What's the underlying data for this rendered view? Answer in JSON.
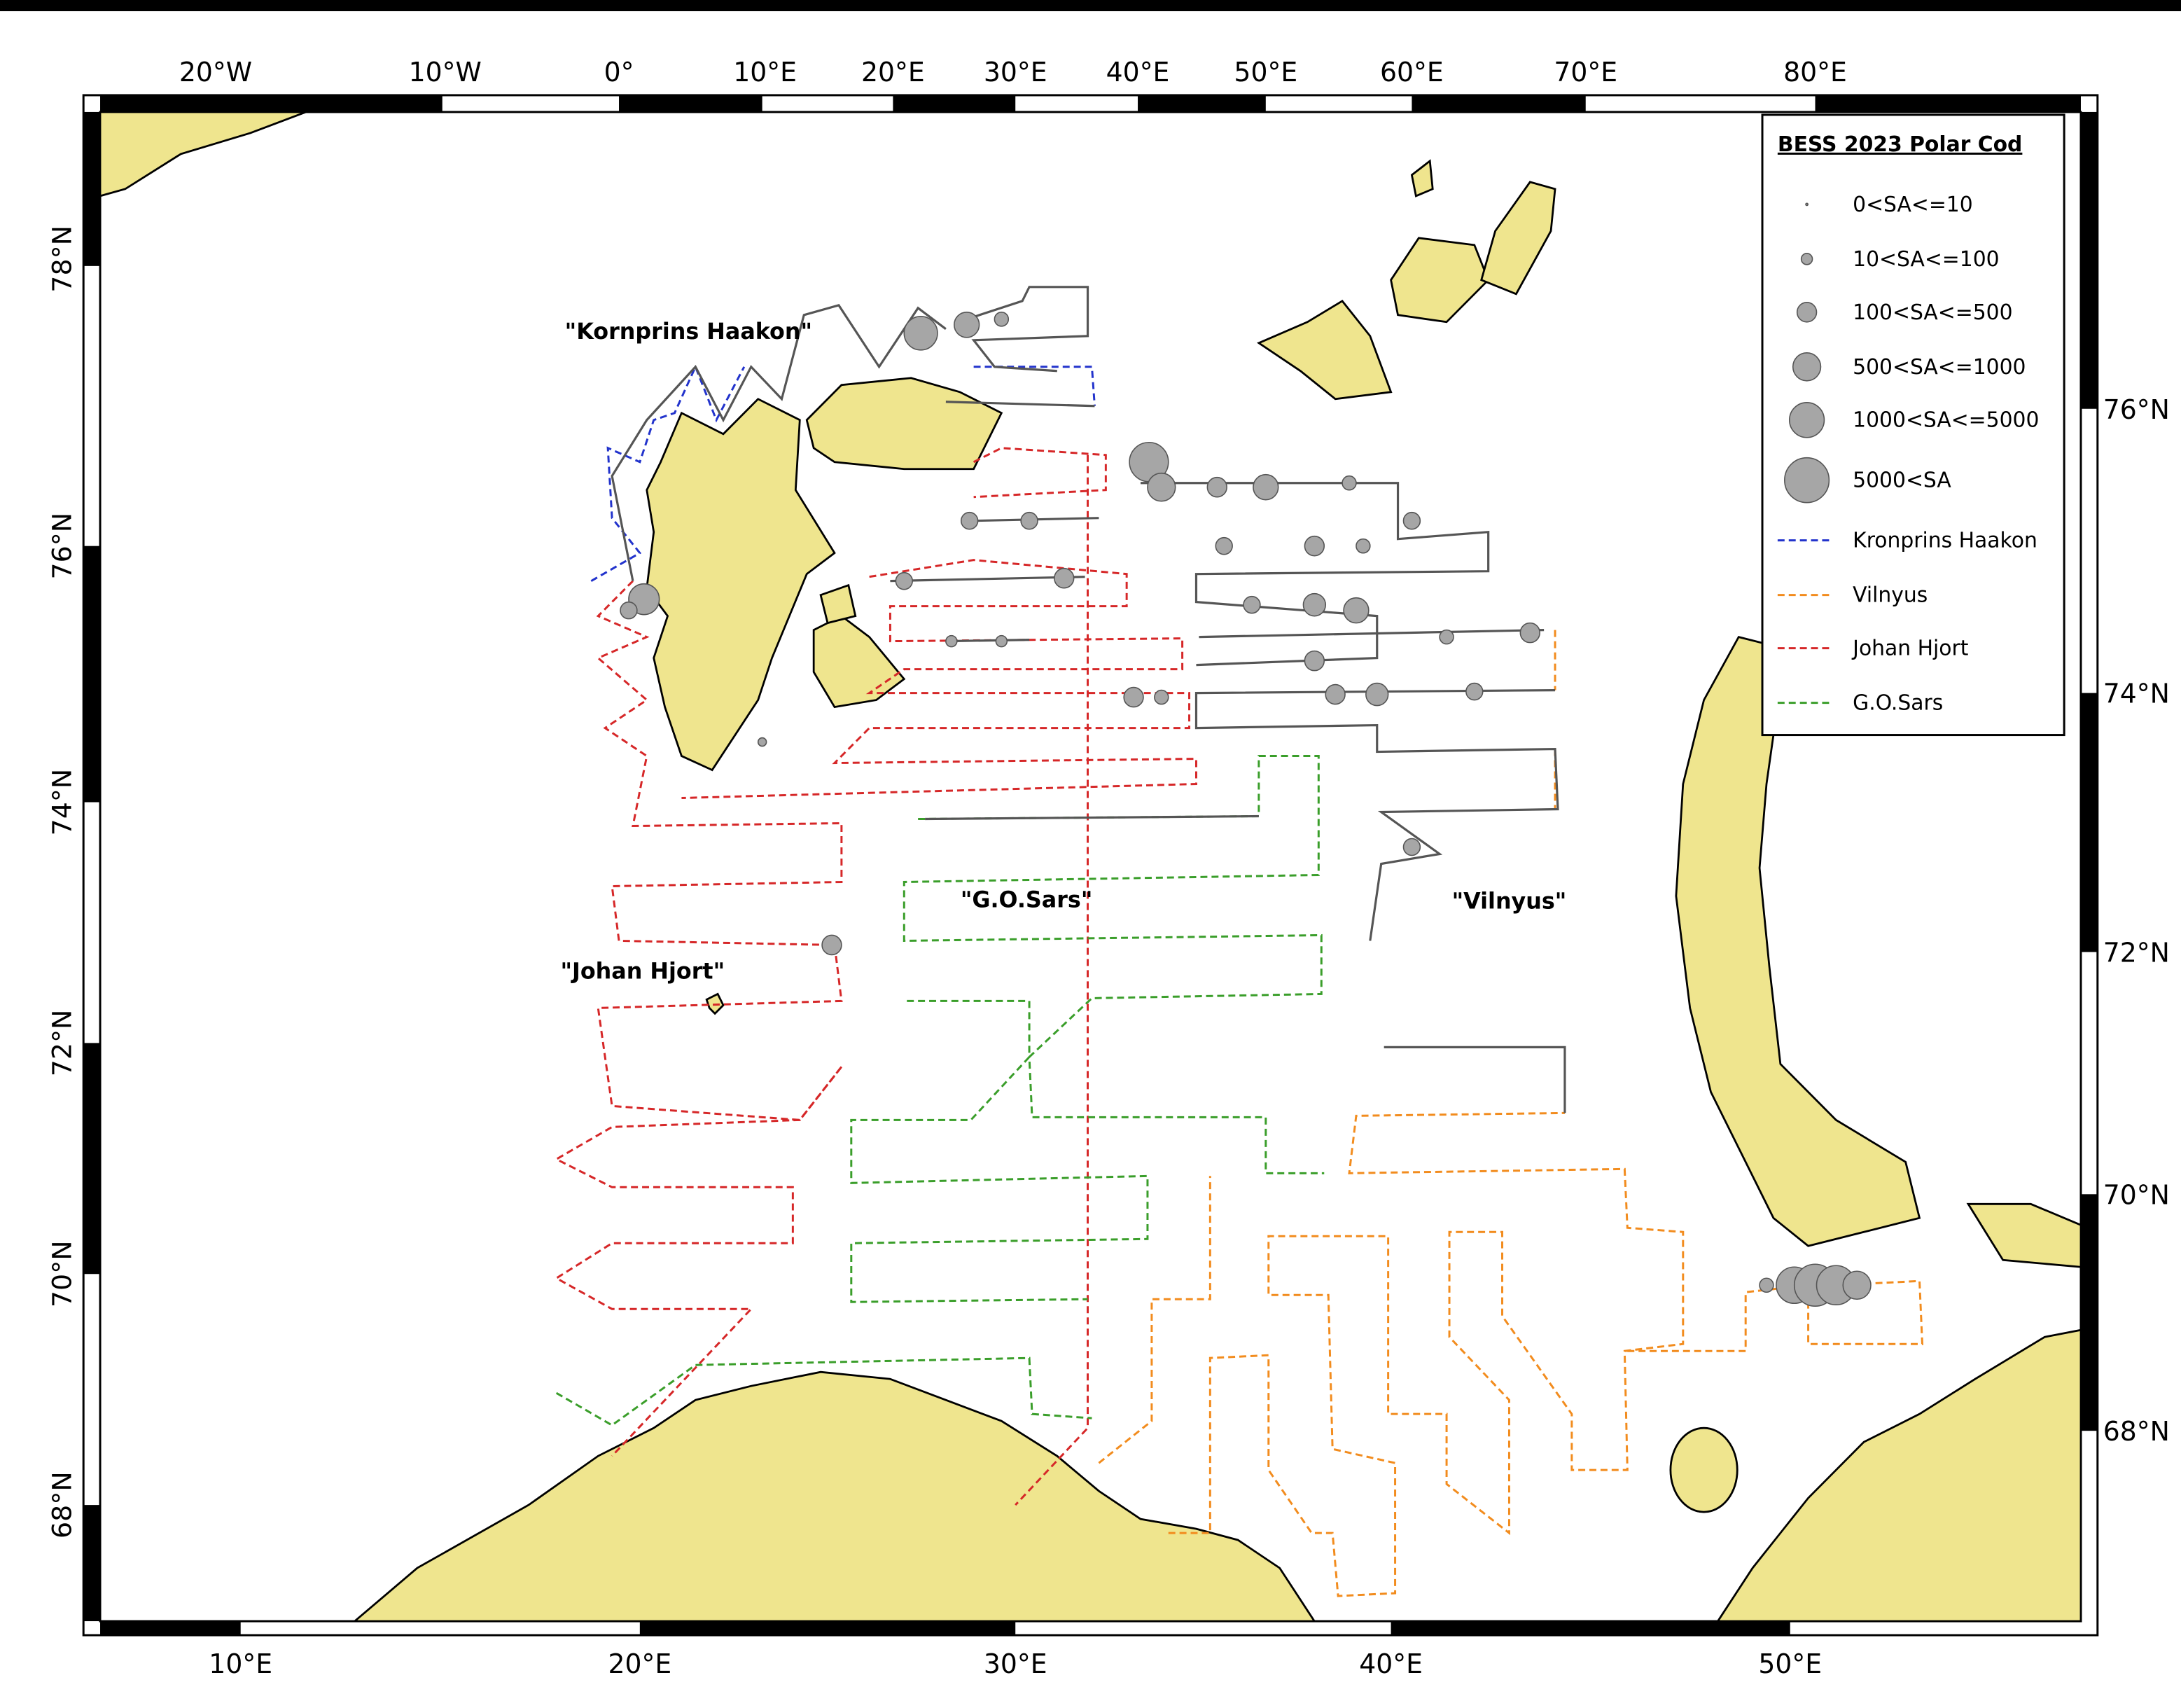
{
  "axes": {
    "top": [
      "20°W",
      "10°W",
      "0°",
      "10°E",
      "20°E",
      "30°E",
      "40°E",
      "50°E",
      "60°E",
      "70°E",
      "80°E"
    ],
    "bottom": [
      "10°E",
      "20°E",
      "30°E",
      "40°E",
      "50°E"
    ],
    "left": [
      "78°N",
      "76°N",
      "74°N",
      "72°N",
      "70°N",
      "68°N"
    ],
    "right": [
      "76°N",
      "74°N",
      "72°N",
      "70°N",
      "68°N"
    ]
  },
  "legend": {
    "title": "BESS 2023 Polar Cod",
    "sizes": [
      "0<SA<=10",
      "10<SA<=100",
      "100<SA<=500",
      "500<SA<=1000",
      "1000<SA<=5000",
      "5000<SA"
    ],
    "tracks": [
      {
        "name": "Kronprins Haakon",
        "color": "#2233cc"
      },
      {
        "name": "Vilnyus",
        "color": "#f28c1e"
      },
      {
        "name": "Johan Hjort",
        "color": "#d62728"
      },
      {
        "name": "G.O.Sars",
        "color": "#3a9e2a"
      }
    ]
  },
  "labels": [
    "\"Kornprins Haakon\"",
    "\"G.O.Sars\"",
    "\"Vilnyus\"",
    "\"Johan Hjort\""
  ]
}
